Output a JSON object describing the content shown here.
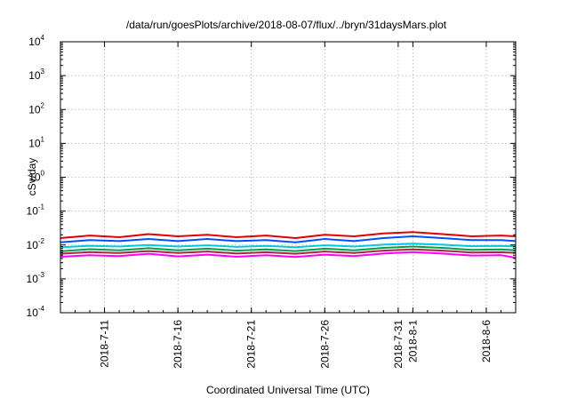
{
  "chart_data": {
    "type": "line",
    "title": "/data/run/goesPlots/archive/2018-08-07/flux/../bryn/31daysMars.plot",
    "xlabel": "Coordinated Universal Time (UTC)",
    "ylabel": "cSv/day",
    "yscale": "log",
    "ylim": [
      0.0001,
      10000
    ],
    "xlim": [
      "2018-07-08",
      "2018-08-08"
    ],
    "grid": true,
    "y_ticks": [
      {
        "base": "10",
        "exp": "-4"
      },
      {
        "base": "10",
        "exp": "-3"
      },
      {
        "base": "10",
        "exp": "-2"
      },
      {
        "base": "10",
        "exp": "-1"
      },
      {
        "base": "10",
        "exp": "0"
      },
      {
        "base": "10",
        "exp": "1"
      },
      {
        "base": "10",
        "exp": "2"
      },
      {
        "base": "10",
        "exp": "3"
      },
      {
        "base": "10",
        "exp": "4"
      }
    ],
    "x_ticks": [
      {
        "date": "2018-07-11",
        "label": "2018-7-11"
      },
      {
        "date": "2018-07-16",
        "label": "2018-7-16"
      },
      {
        "date": "2018-07-21",
        "label": "2018-7-21"
      },
      {
        "date": "2018-07-26",
        "label": "2018-7-26"
      },
      {
        "date": "2018-07-31",
        "label": "2018-7-31"
      },
      {
        "date": "2018-08-01",
        "label": "2018-8-1"
      },
      {
        "date": "2018-08-06",
        "label": "2018-8-6"
      }
    ],
    "series": [
      {
        "color": "#e00000",
        "x": [
          "2018-07-08",
          "2018-07-10",
          "2018-07-12",
          "2018-07-14",
          "2018-07-16",
          "2018-07-18",
          "2018-07-20",
          "2018-07-22",
          "2018-07-24",
          "2018-07-26",
          "2018-07-28",
          "2018-07-30",
          "2018-08-01",
          "2018-08-03",
          "2018-08-05",
          "2018-08-07",
          "2018-08-08"
        ],
        "y": [
          0.016,
          0.019,
          0.017,
          0.021,
          0.018,
          0.02,
          0.017,
          0.019,
          0.016,
          0.02,
          0.018,
          0.022,
          0.024,
          0.021,
          0.018,
          0.019,
          0.018
        ]
      },
      {
        "color": "#0050ff",
        "x": [
          "2018-07-08",
          "2018-07-10",
          "2018-07-12",
          "2018-07-14",
          "2018-07-16",
          "2018-07-18",
          "2018-07-20",
          "2018-07-22",
          "2018-07-24",
          "2018-07-26",
          "2018-07-28",
          "2018-07-30",
          "2018-08-01",
          "2018-08-03",
          "2018-08-05",
          "2018-08-07",
          "2018-08-08"
        ],
        "y": [
          0.012,
          0.014,
          0.013,
          0.015,
          0.013,
          0.015,
          0.013,
          0.014,
          0.012,
          0.015,
          0.013,
          0.016,
          0.018,
          0.016,
          0.014,
          0.014,
          0.013
        ]
      },
      {
        "color": "#00a050",
        "x": [
          "2018-07-08",
          "2018-07-10",
          "2018-07-12",
          "2018-07-14",
          "2018-07-16",
          "2018-07-18",
          "2018-07-20",
          "2018-07-22",
          "2018-07-24",
          "2018-07-26",
          "2018-07-28",
          "2018-07-30",
          "2018-08-01",
          "2018-08-03",
          "2018-08-05",
          "2018-08-07",
          "2018-08-08"
        ],
        "y": [
          0.0065,
          0.0075,
          0.007,
          0.008,
          0.007,
          0.0078,
          0.0068,
          0.0074,
          0.0066,
          0.0078,
          0.007,
          0.0082,
          0.009,
          0.0082,
          0.0072,
          0.0074,
          0.007
        ]
      },
      {
        "color": "#00c8e0",
        "x": [
          "2018-07-08",
          "2018-07-10",
          "2018-07-12",
          "2018-07-14",
          "2018-07-16",
          "2018-07-18",
          "2018-07-20",
          "2018-07-22",
          "2018-07-24",
          "2018-07-26",
          "2018-07-28",
          "2018-07-30",
          "2018-08-01",
          "2018-08-03",
          "2018-08-05",
          "2018-08-07",
          "2018-08-08"
        ],
        "y": [
          0.0085,
          0.0095,
          0.009,
          0.01,
          0.009,
          0.0098,
          0.0088,
          0.0094,
          0.0086,
          0.0098,
          0.009,
          0.0102,
          0.011,
          0.0102,
          0.0092,
          0.0094,
          0.009
        ]
      },
      {
        "color": "#b02040",
        "x": [
          "2018-07-08",
          "2018-07-10",
          "2018-07-12",
          "2018-07-14",
          "2018-07-16",
          "2018-07-18",
          "2018-07-20",
          "2018-07-22",
          "2018-07-24",
          "2018-07-26",
          "2018-07-28",
          "2018-07-30",
          "2018-08-01",
          "2018-08-03",
          "2018-08-05",
          "2018-08-07",
          "2018-08-08"
        ],
        "y": [
          0.0055,
          0.0062,
          0.0058,
          0.0066,
          0.0058,
          0.0064,
          0.0056,
          0.0061,
          0.0055,
          0.0064,
          0.0058,
          0.0068,
          0.0074,
          0.0068,
          0.006,
          0.0061,
          0.0058
        ]
      },
      {
        "color": "#ff00ff",
        "x": [
          "2018-07-08",
          "2018-07-10",
          "2018-07-12",
          "2018-07-14",
          "2018-07-16",
          "2018-07-18",
          "2018-07-20",
          "2018-07-22",
          "2018-07-24",
          "2018-07-26",
          "2018-07-28",
          "2018-07-30",
          "2018-08-01",
          "2018-08-03",
          "2018-08-05",
          "2018-08-07",
          "2018-08-08"
        ],
        "y": [
          0.0045,
          0.005,
          0.0047,
          0.0055,
          0.0046,
          0.0052,
          0.0045,
          0.005,
          0.0044,
          0.0052,
          0.0047,
          0.0056,
          0.0062,
          0.0056,
          0.0049,
          0.005,
          0.0042
        ]
      }
    ]
  }
}
